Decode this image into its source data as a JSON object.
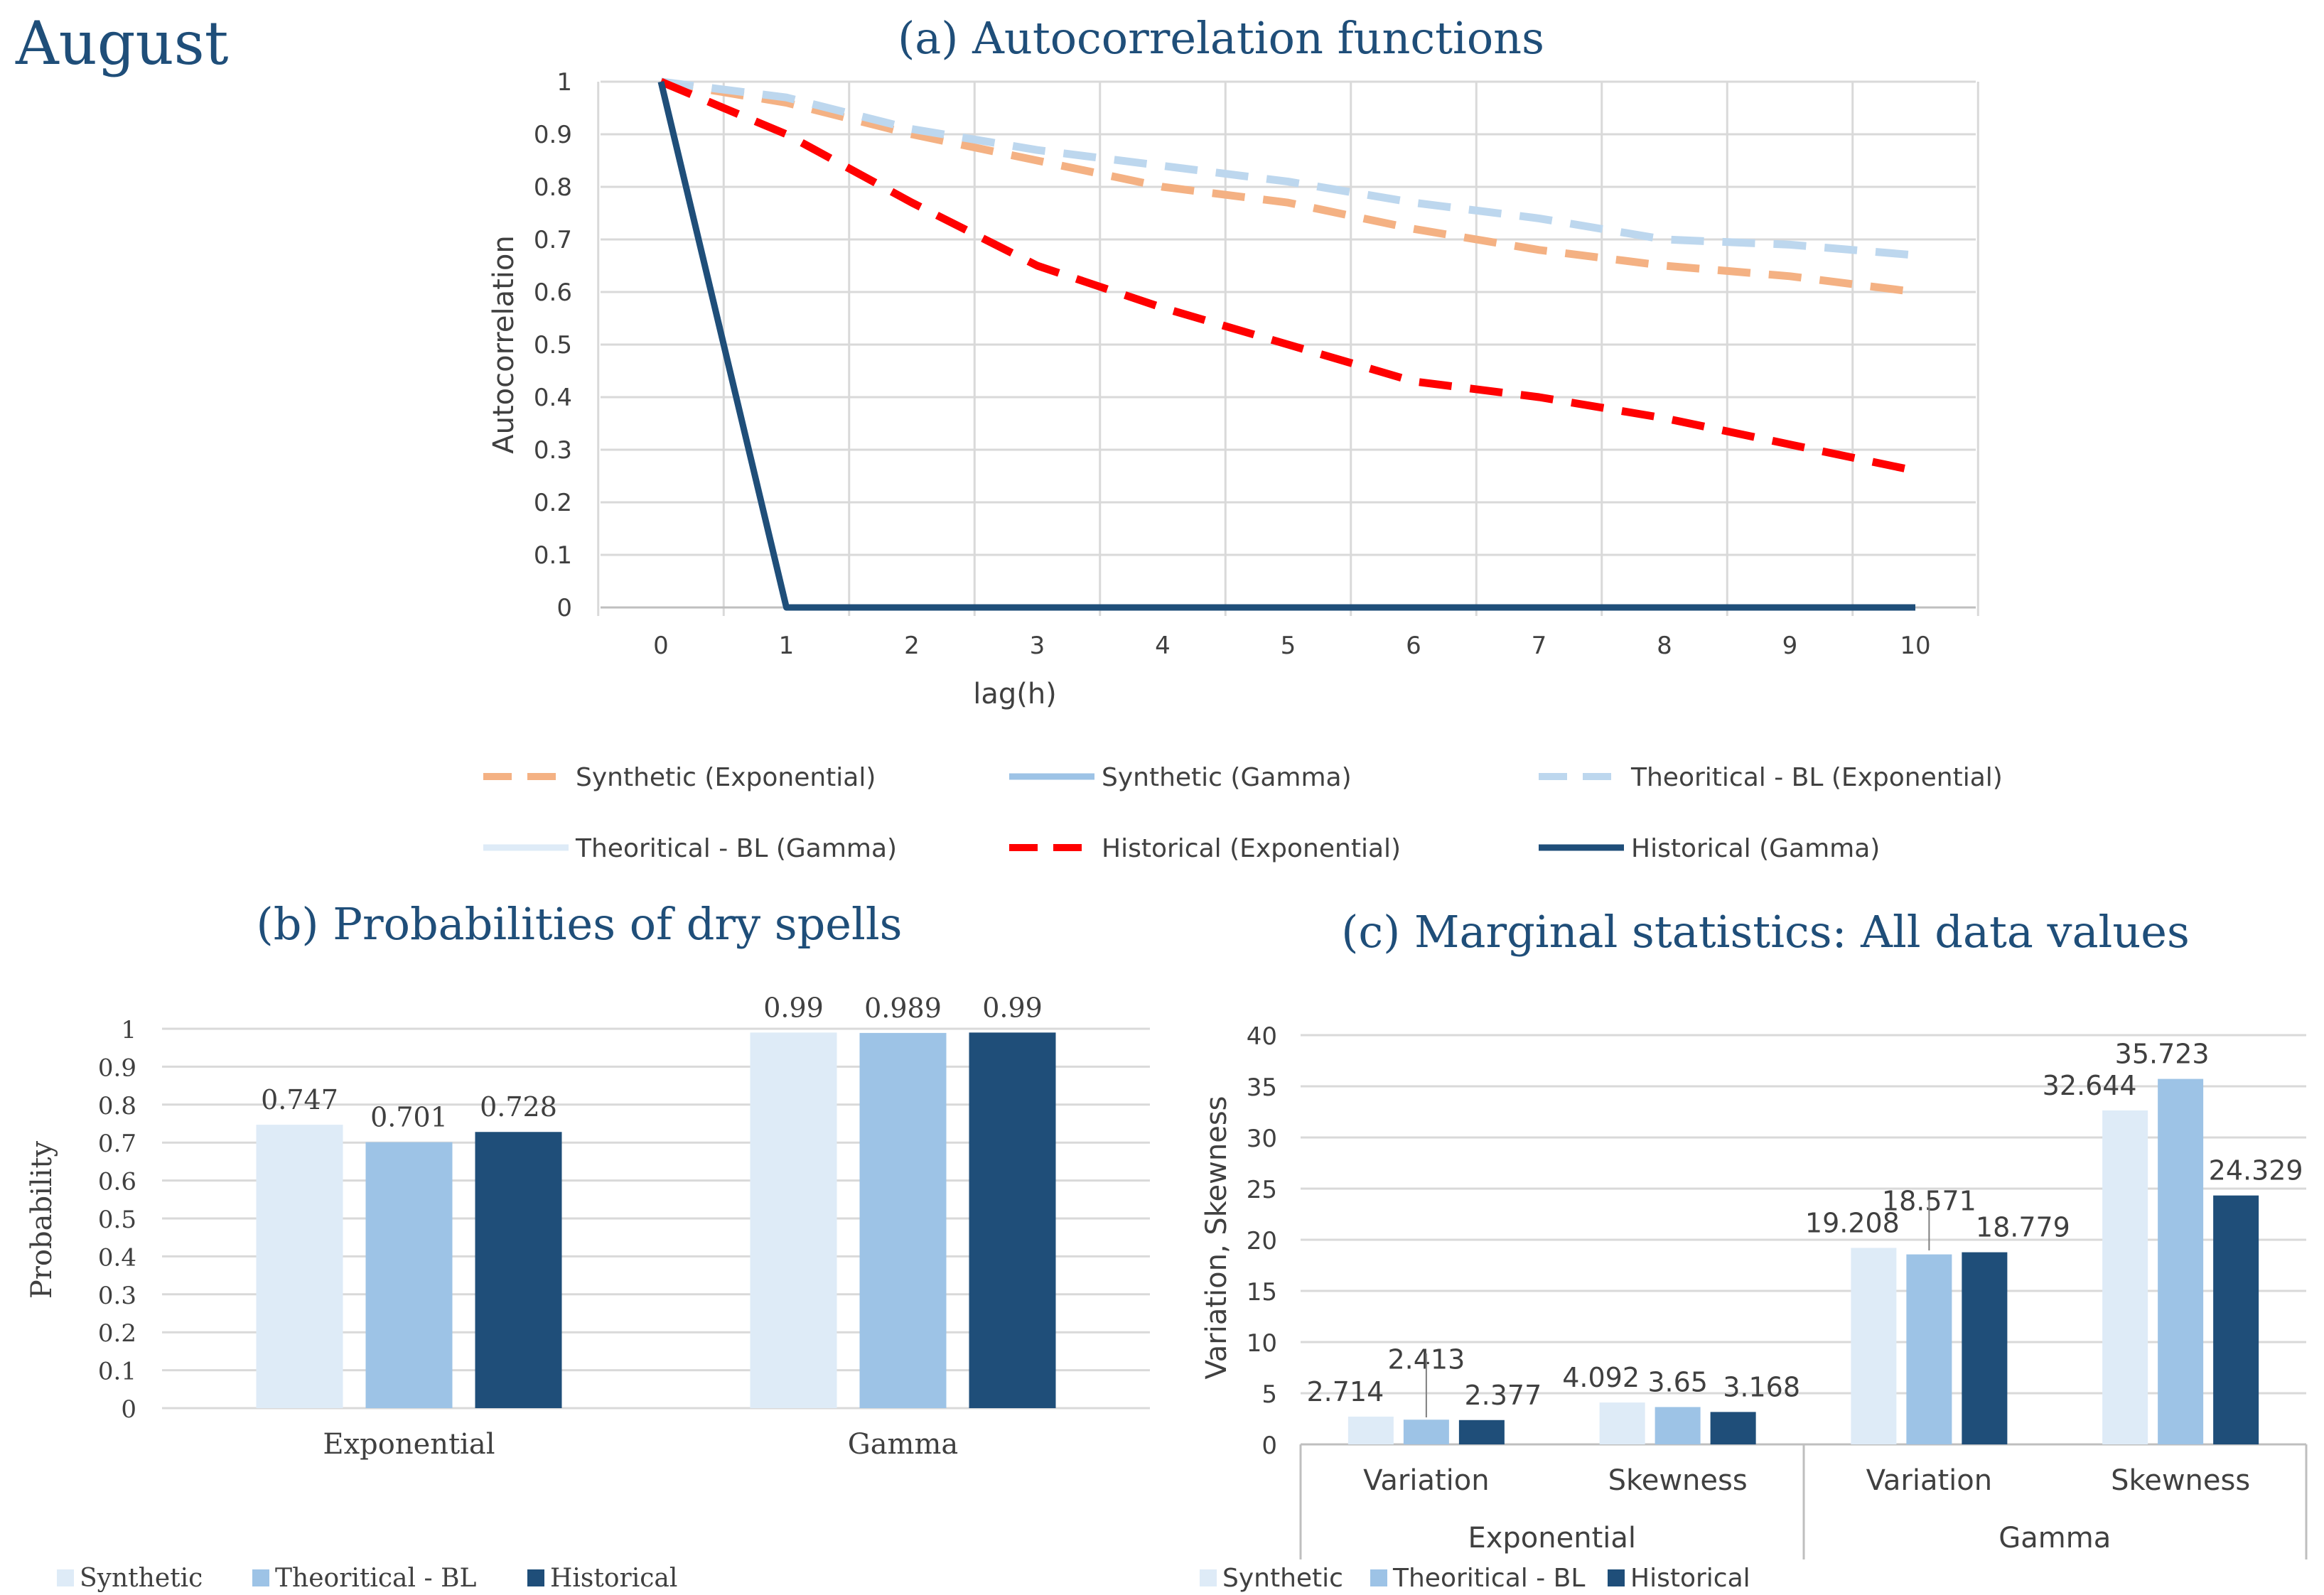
{
  "page": {
    "month": "August"
  },
  "chart_data": [
    {
      "id": "a",
      "type": "line",
      "title": "(a) Autocorrelation functions",
      "xlabel": "lag(h)",
      "ylabel": "Autocorrelation",
      "x": [
        0,
        1,
        2,
        3,
        4,
        5,
        6,
        7,
        8,
        9,
        10
      ],
      "ylim": [
        0,
        1
      ],
      "yticks": [
        "0",
        "0.1",
        "0.2",
        "0.3",
        "0.4",
        "0.5",
        "0.6",
        "0.7",
        "0.8",
        "0.9",
        "1"
      ],
      "xticks": [
        "0",
        "1",
        "2",
        "3",
        "4",
        "5",
        "6",
        "7",
        "8",
        "9",
        "10"
      ],
      "grid": true,
      "legend": "bottom",
      "series": [
        {
          "name": "Synthetic (Exponential)",
          "color": "#f4b183",
          "dash": true,
          "values": [
            1,
            0.96,
            0.9,
            0.85,
            0.8,
            0.77,
            0.72,
            0.68,
            0.65,
            0.63,
            0.6
          ]
        },
        {
          "name": "Synthetic (Gamma)",
          "color": "#9dc3e6",
          "dash": false,
          "values": [
            1,
            0,
            0,
            0,
            0,
            0,
            0,
            0,
            0,
            0,
            0
          ]
        },
        {
          "name": "Theoritical - BL (Exponential)",
          "color": "#bdd7ee",
          "dash": true,
          "values": [
            1,
            0.97,
            0.91,
            0.87,
            0.84,
            0.81,
            0.77,
            0.74,
            0.7,
            0.69,
            0.67
          ]
        },
        {
          "name": "Theoritical - BL (Gamma)",
          "color": "#deebf7",
          "dash": false,
          "values": [
            1,
            0,
            0,
            0,
            0,
            0,
            0,
            0,
            0,
            0,
            0
          ]
        },
        {
          "name": "Historical (Exponential)",
          "color": "#ff0000",
          "dash": true,
          "values": [
            1,
            0.9,
            0.77,
            0.65,
            0.57,
            0.5,
            0.43,
            0.4,
            0.36,
            0.31,
            0.26
          ]
        },
        {
          "name": "Historical (Gamma)",
          "color": "#1f4e79",
          "dash": false,
          "values": [
            1,
            0,
            0,
            0,
            0,
            0,
            0,
            0,
            0,
            0,
            0
          ]
        }
      ]
    },
    {
      "id": "b",
      "type": "bar",
      "title": "(b) Probabilities of dry spells",
      "xlabel": "",
      "ylabel": "Probability",
      "categories": [
        "Exponential",
        "Gamma"
      ],
      "ylim": [
        0,
        1
      ],
      "yticks": [
        "0",
        "0.1",
        "0.2",
        "0.3",
        "0.4",
        "0.5",
        "0.6",
        "0.7",
        "0.8",
        "0.9",
        "1"
      ],
      "grid": true,
      "legend": "bottom-left",
      "series": [
        {
          "name": "Synthetic",
          "color": "#deebf7",
          "values": [
            0.747,
            0.99
          ],
          "labels": [
            "0.747",
            "0.99"
          ]
        },
        {
          "name": "Theoritical - BL",
          "color": "#9dc3e6",
          "values": [
            0.701,
            0.989
          ],
          "labels": [
            "0.701",
            "0.989"
          ]
        },
        {
          "name": "Historical",
          "color": "#1f4e79",
          "values": [
            0.728,
            0.99
          ],
          "labels": [
            "0.728",
            "0.99"
          ]
        }
      ]
    },
    {
      "id": "c",
      "type": "bar",
      "title": "(c) Marginal statistics: All data values",
      "xlabel": "",
      "ylabel": "Variation, Skewness",
      "groups": [
        "Exponential",
        "Gamma"
      ],
      "categories": [
        "Variation",
        "Skewness",
        "Variation",
        "Skewness"
      ],
      "ylim": [
        0,
        40
      ],
      "yticks": [
        "0",
        "5",
        "10",
        "15",
        "20",
        "25",
        "30",
        "35",
        "40"
      ],
      "grid": true,
      "legend": "bottom-left",
      "series": [
        {
          "name": "Synthetic",
          "color": "#deebf7",
          "values": [
            2.714,
            4.092,
            19.208,
            32.644
          ],
          "labels": [
            "2.714",
            "4.092",
            "19.208",
            "32.644"
          ]
        },
        {
          "name": "Theoritical - BL",
          "color": "#9dc3e6",
          "values": [
            2.413,
            3.65,
            18.571,
            35.723
          ],
          "labels": [
            "2.413",
            "3.65",
            "18.571",
            "35.723"
          ]
        },
        {
          "name": "Historical",
          "color": "#1f4e79",
          "values": [
            2.377,
            3.168,
            18.779,
            24.329
          ],
          "labels": [
            "2.377",
            "3.168",
            "18.779",
            "24.329"
          ]
        }
      ]
    }
  ]
}
